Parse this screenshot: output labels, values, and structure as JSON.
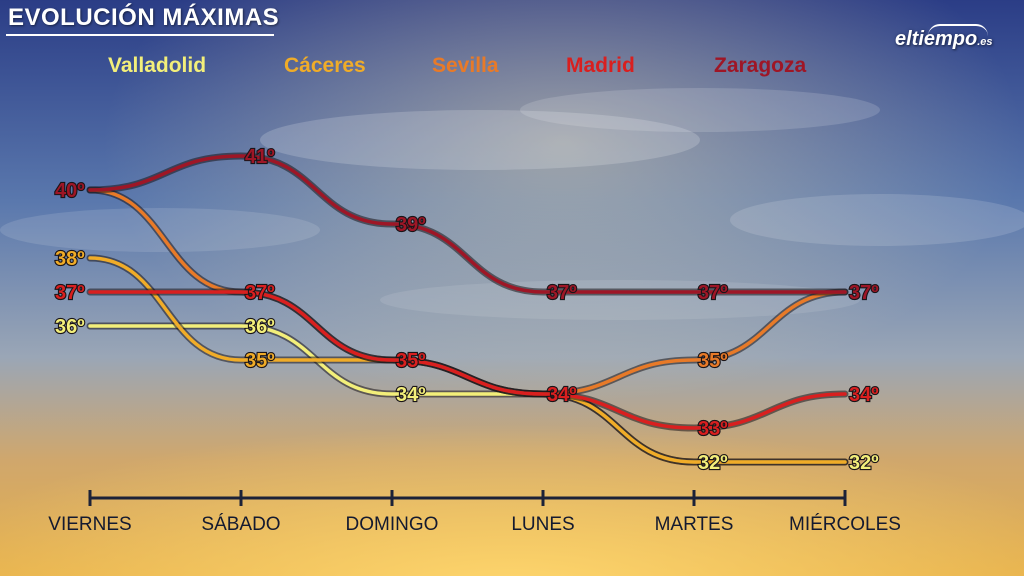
{
  "title": "EVOLUCIÓN MÁXIMAS",
  "logo": {
    "main": "eltiempo",
    "tld": ".es"
  },
  "colors": {
    "Valladolid": "#f3ef7a",
    "Cáceres": "#f0ac28",
    "Sevilla": "#e87a28",
    "Madrid": "#d91f1f",
    "Zaragoza": "#9e1626",
    "axis": "#1c2238"
  },
  "chart_data": {
    "type": "line",
    "categories": [
      "VIERNES",
      "SÁBADO",
      "DOMINGO",
      "LUNES",
      "MARTES",
      "MIÉRCOLES"
    ],
    "series": [
      {
        "name": "Valladolid",
        "values": [
          36,
          36,
          34,
          34,
          32,
          32
        ]
      },
      {
        "name": "Cáceres",
        "values": [
          38,
          35,
          35,
          34,
          32,
          32
        ]
      },
      {
        "name": "Sevilla",
        "values": [
          40,
          37,
          35,
          34,
          35,
          37
        ]
      },
      {
        "name": "Madrid",
        "values": [
          37,
          37,
          35,
          34,
          33,
          34
        ]
      },
      {
        "name": "Zaragoza",
        "values": [
          40,
          41,
          39,
          37,
          37,
          37
        ]
      }
    ],
    "labels": [
      {
        "series": "Zaragoza",
        "index": 0,
        "text": "40º"
      },
      {
        "series": "Cáceres",
        "index": 0,
        "text": "38º"
      },
      {
        "series": "Madrid",
        "index": 0,
        "text": "37º"
      },
      {
        "series": "Valladolid",
        "index": 0,
        "text": "36º"
      },
      {
        "series": "Zaragoza",
        "index": 1,
        "text": "41º"
      },
      {
        "series": "Madrid",
        "index": 1,
        "text": "37º"
      },
      {
        "series": "Valladolid",
        "index": 1,
        "text": "36º"
      },
      {
        "series": "Cáceres",
        "index": 1,
        "text": "35º"
      },
      {
        "series": "Zaragoza",
        "index": 2,
        "text": "39º"
      },
      {
        "series": "Madrid",
        "index": 2,
        "text": "35º"
      },
      {
        "series": "Valladolid",
        "index": 2,
        "text": "34º"
      },
      {
        "series": "Zaragoza",
        "index": 3,
        "text": "37º"
      },
      {
        "series": "Madrid",
        "index": 3,
        "text": "34º"
      },
      {
        "series": "Zaragoza",
        "index": 4,
        "text": "37º"
      },
      {
        "series": "Sevilla",
        "index": 4,
        "text": "35º"
      },
      {
        "series": "Madrid",
        "index": 4,
        "text": "33º"
      },
      {
        "series": "Valladolid",
        "index": 4,
        "text": "32º"
      },
      {
        "series": "Zaragoza",
        "index": 5,
        "text": "37º"
      },
      {
        "series": "Madrid",
        "index": 5,
        "text": "34º"
      },
      {
        "series": "Valladolid",
        "index": 5,
        "text": "32º"
      }
    ],
    "title": "EVOLUCIÓN MÁXIMAS",
    "xlabel": "",
    "ylabel": "",
    "ylim": [
      31,
      42
    ],
    "grid": false,
    "legend": "top"
  }
}
